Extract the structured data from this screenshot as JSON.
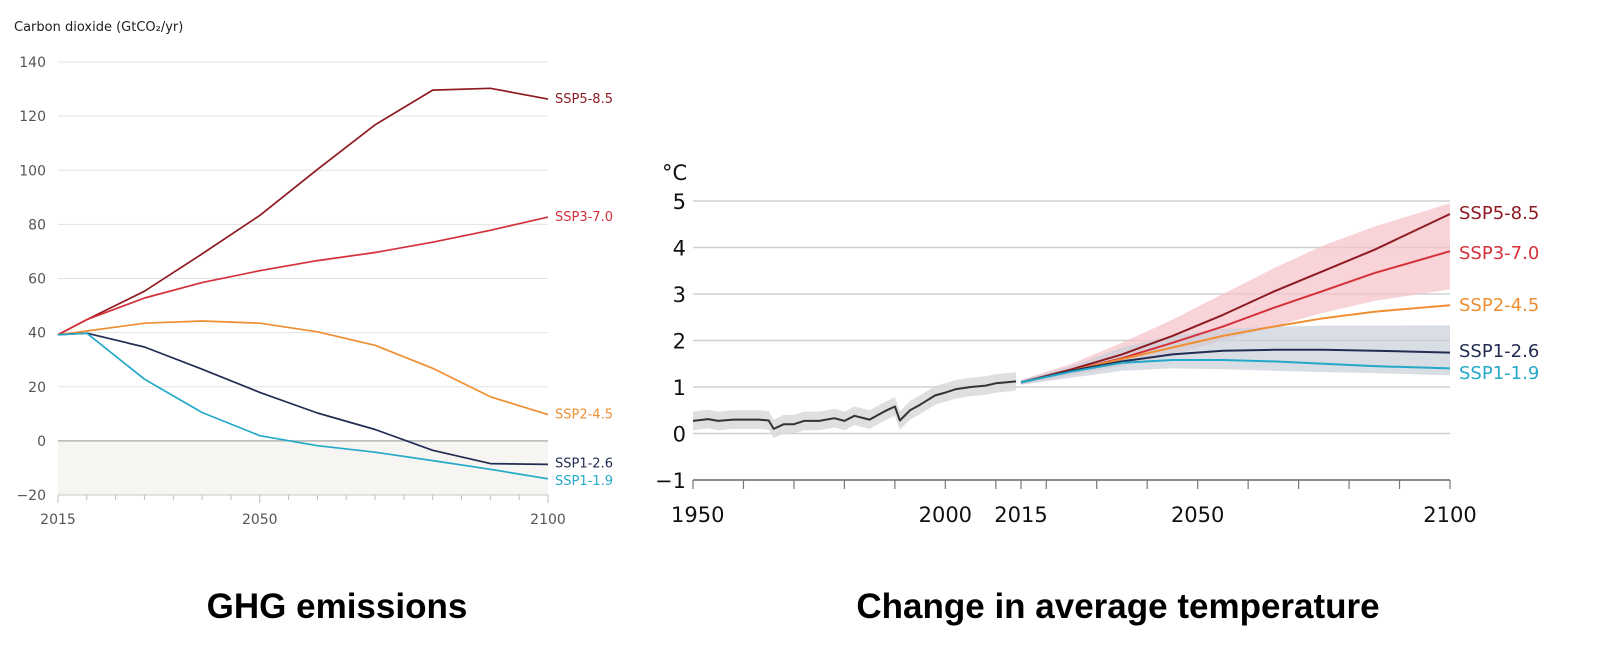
{
  "colors": {
    "ssp585": "#8e1b22",
    "ssp370": "#d6303a",
    "ssp245": "#ef8f32",
    "ssp126": "#232c52",
    "ssp119": "#24a9c9",
    "historical": "#333333"
  },
  "chart_data": [
    {
      "type": "line",
      "title": "",
      "ylabel": "Carbon dioxide (GtCO₂/yr)",
      "xlabel": "",
      "xlim": [
        2015,
        2100
      ],
      "ylim": [
        -20,
        140
      ],
      "yticks": [
        140,
        120,
        100,
        80,
        60,
        40,
        20,
        0,
        -20
      ],
      "ytick_labels": [
        "140",
        "120",
        "100",
        "80",
        "60",
        "40",
        "20",
        "0",
        "−20"
      ],
      "xticks": [
        2015,
        2050,
        2100
      ],
      "xtick_labels": [
        "2015",
        "2050",
        "2100"
      ],
      "grid": true,
      "caption": "GHG emissions",
      "x": [
        2015,
        2020,
        2030,
        2040,
        2050,
        2060,
        2070,
        2080,
        2090,
        2100
      ],
      "series": [
        {
          "name": "SSP5-8.5",
          "color_key": "ssp585",
          "values": [
            39.2,
            44.8,
            55.3,
            69.1,
            83.3,
            100.3,
            116.8,
            129.6,
            130.3,
            126.3
          ]
        },
        {
          "name": "SSP3-7.0",
          "color_key": "ssp370",
          "values": [
            39.2,
            44.8,
            52.8,
            58.5,
            62.9,
            66.6,
            69.6,
            73.4,
            77.8,
            82.7
          ]
        },
        {
          "name": "SSP2-4.5",
          "color_key": "ssp245",
          "values": [
            39.2,
            40.6,
            43.5,
            44.3,
            43.5,
            40.3,
            35.3,
            26.8,
            16.3,
            9.7
          ]
        },
        {
          "name": "SSP1-2.6",
          "color_key": "ssp126",
          "values": [
            39.2,
            39.8,
            34.7,
            26.5,
            17.9,
            10.3,
            4.2,
            -3.5,
            -8.4,
            -8.7
          ]
        },
        {
          "name": "SSP1-1.9",
          "color_key": "ssp119",
          "values": [
            39.2,
            39.8,
            22.8,
            10.5,
            1.9,
            -1.8,
            -4.2,
            -7.3,
            -10.5,
            -14.0
          ]
        }
      ]
    },
    {
      "type": "line",
      "title": "",
      "ylabel": "°C",
      "xlabel": "",
      "xlim": [
        1950,
        2100
      ],
      "ylim": [
        -1,
        5
      ],
      "yticks": [
        5,
        4,
        3,
        2,
        1,
        0,
        -1
      ],
      "ytick_labels": [
        "5",
        "4",
        "3",
        "2",
        "1",
        "0",
        "−1"
      ],
      "xticks": [
        1950,
        2000,
        2015,
        2050,
        2100
      ],
      "xtick_labels": [
        "1950",
        "2000",
        "2015",
        "2050",
        "2100"
      ],
      "grid": true,
      "caption": "Change in average temperature",
      "historical": {
        "name": "",
        "color_key": "historical",
        "x": [
          1950,
          1953,
          1955,
          1958,
          1960,
          1963,
          1965,
          1966,
          1968,
          1970,
          1972,
          1975,
          1978,
          1980,
          1982,
          1985,
          1988,
          1990,
          1991,
          1993,
          1995,
          1998,
          2000,
          2002,
          2005,
          2008,
          2010,
          2012,
          2014
        ],
        "values": [
          0.27,
          0.31,
          0.27,
          0.3,
          0.3,
          0.3,
          0.28,
          0.1,
          0.2,
          0.2,
          0.27,
          0.27,
          0.33,
          0.27,
          0.38,
          0.3,
          0.48,
          0.58,
          0.28,
          0.5,
          0.62,
          0.82,
          0.88,
          0.95,
          1.0,
          1.03,
          1.08,
          1.1,
          1.12
        ]
      },
      "projection_x": [
        2015,
        2025,
        2035,
        2045,
        2055,
        2065,
        2075,
        2085,
        2100
      ],
      "series": [
        {
          "name": "SSP5-8.5",
          "color_key": "ssp585",
          "values": [
            1.1,
            1.38,
            1.7,
            2.1,
            2.55,
            3.05,
            3.5,
            3.95,
            4.72
          ]
        },
        {
          "name": "SSP3-7.0",
          "color_key": "ssp370",
          "values": [
            1.1,
            1.35,
            1.62,
            1.95,
            2.3,
            2.7,
            3.07,
            3.45,
            3.92
          ]
        },
        {
          "name": "SSP2-4.5",
          "color_key": "ssp245",
          "values": [
            1.1,
            1.35,
            1.6,
            1.85,
            2.1,
            2.3,
            2.48,
            2.62,
            2.76
          ]
        },
        {
          "name": "SSP1-2.6",
          "color_key": "ssp126",
          "values": [
            1.1,
            1.35,
            1.55,
            1.7,
            1.78,
            1.8,
            1.8,
            1.78,
            1.74
          ]
        },
        {
          "name": "SSP1-1.9",
          "color_key": "ssp119",
          "values": [
            1.1,
            1.33,
            1.52,
            1.58,
            1.58,
            1.55,
            1.5,
            1.45,
            1.4
          ]
        }
      ],
      "bands": [
        {
          "color_key": "ssp370",
          "low": [
            1.05,
            1.25,
            1.45,
            1.7,
            2.0,
            2.3,
            2.6,
            2.85,
            3.1
          ],
          "high": [
            1.15,
            1.5,
            1.95,
            2.45,
            3.0,
            3.55,
            4.05,
            4.45,
            4.95
          ]
        },
        {
          "color_key": "ssp126",
          "low": [
            1.05,
            1.2,
            1.35,
            1.4,
            1.38,
            1.35,
            1.32,
            1.3,
            1.25
          ],
          "high": [
            1.15,
            1.45,
            1.85,
            2.1,
            2.25,
            2.3,
            2.32,
            2.32,
            2.33
          ]
        }
      ]
    }
  ]
}
